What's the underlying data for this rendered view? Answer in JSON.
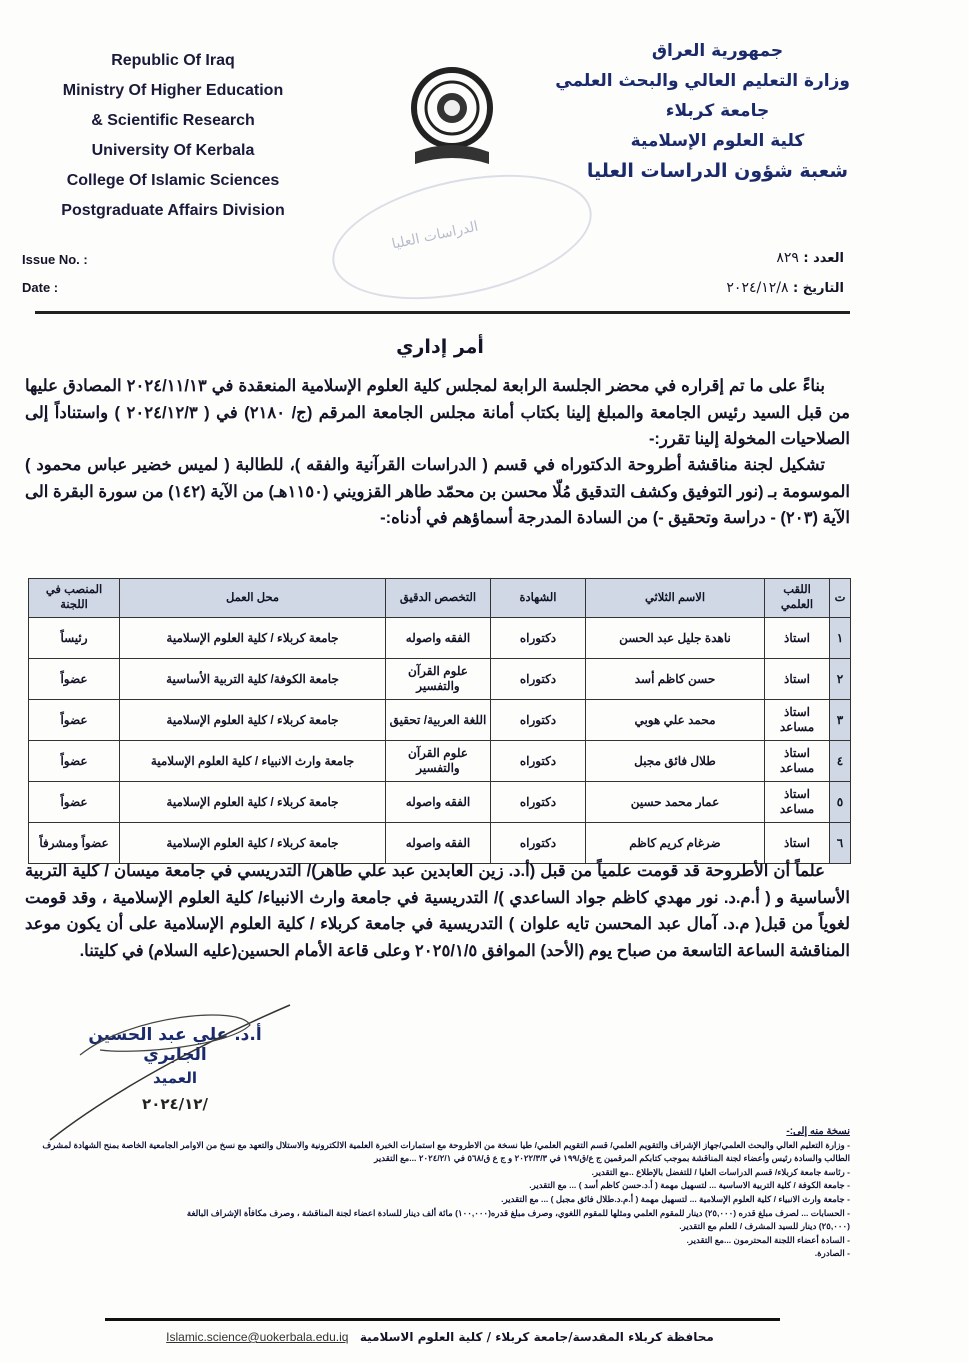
{
  "header_en": {
    "lines": [
      "Republic Of Iraq",
      "Ministry Of Higher Education",
      "& Scientific Research",
      "University Of Kerbala",
      "College Of Islamic Sciences",
      "Postgraduate Affairs Division"
    ],
    "issue_label": "Issue No. :",
    "date_label": "Date :"
  },
  "header_ar": {
    "lines": [
      "جمهورية العراق",
      "وزارة التعليم العالي والبحث العلمي",
      "جامعة كربلاء",
      "كلية العلوم الإسلامية",
      "شعبة شؤون الدراسات العليا"
    ],
    "issue_label": "العدد :",
    "issue_value": "٨٢٩",
    "date_label": "التاريخ :",
    "date_value": "٢٠٢٤/١٢/٨"
  },
  "stamp_text": "الدراسات العليا",
  "title": "أمر إداري",
  "paragraphs": [
    "بناءً على ما تم إقراره في محضر الجلسة الرابعة لمجلس كلية العلوم الإسلامية المنعقدة في ٢٠٢٤/١١/١٣ المصادق عليها من قبل السيد رئيس الجامعة والمبلغ إلينا بكتاب أمانة مجلس الجامعة المرقم (ج/ ٢١٨٠) في ( ٢٠٢٤/١٢/٣ ) واستناداً إلى الصلاحيات المخولة إلينا تقرر:-",
    "تشكيل لجنة مناقشة أطروحة الدكتوراه في قسم ( الدراسات القرآنية والفقه )، للطالبة ( لميس خضير عباس محمود ) الموسومة بـ (نور التوفيق وكشف التدقيق مُلّا محسن بن محمّد طاهر القزويني (١١٥٠هـ) من الآية (١٤٢) من سورة البقرة الى الآية (٢٠٣) - دراسة وتحقيق -) من السادة المدرجة أسماؤهم في أدناه:-"
  ],
  "table": {
    "headers": [
      "ت",
      "اللقب العلمي",
      "الاسم الثلاثي",
      "الشهادة",
      "التخصص الدقيق",
      "محل العمل",
      "المنصب في اللجنة"
    ],
    "rows": [
      [
        "١",
        "استاذ",
        "ناهدة جليل عبد الحسن",
        "دكتوراه",
        "الفقه واصوله",
        "جامعة كربلاء / كلية العلوم الإسلامية",
        "رئيساً"
      ],
      [
        "٢",
        "استاذ",
        "حسن كاظم أسد",
        "دكتوراه",
        "علوم القرآن والتفسير",
        "جامعة الكوفة/ كلية التربية الأساسية",
        "عضواً"
      ],
      [
        "٣",
        "استاذ مساعد",
        "محمد علي هوبي",
        "دكتوراه",
        "اللغة العربية/ تحقيق",
        "جامعة كربلاء / كلية العلوم الإسلامية",
        "عضواً"
      ],
      [
        "٤",
        "استاذ مساعد",
        "طلال فائق مجبل",
        "دكتوراه",
        "علوم القرآن والتفسير",
        "جامعة وارث الانبياء / كلية العلوم الإسلامية",
        "عضواً"
      ],
      [
        "٥",
        "استاذ مساعد",
        "عمار محمد حسين",
        "دكتوراه",
        "الفقه واصوله",
        "جامعة كربلاء / كلية العلوم الإسلامية",
        "عضواً"
      ],
      [
        "٦",
        "استاذ",
        "ضرغام كريم كاظم",
        "دكتوراه",
        "الفقه واصوله",
        "جامعة كربلاء / كلية العلوم الإسلامية",
        "عضواً ومشرفاً"
      ]
    ]
  },
  "closing_paragraph": "علماً أن الأطروحة قد قومت علمياً من قبل (أ.د. زين العابدين عبد علي طاهر)/ التدريسي في جامعة ميسان / كلية التربية الأساسية و ( أ.م.د. نور مهدي كاظم جواد الساعدي )/ التدريسية في جامعة وارث الانبياء/ كلية العلوم الإسلامية ، وقد قومت لغوياً من قبل( م.د. آمال عبد المحسن تايه علوان ) التدريسية في جامعة كربلاء / كلية العلوم الإسلامية على أن يكون موعد المناقشة الساعة التاسعة من صباح يوم (الأحد) الموافق ٢٠٢٥/١/٥ وعلى قاعة الأمام الحسين(عليه السلام) في كليتنا.",
  "signature": {
    "name": "أ.د. علي عبد الحسين الجابري",
    "title": "العميد",
    "date": "٢٠٢٤/١٢/"
  },
  "cc": {
    "heading": "نسخة منه إلى:-",
    "items": [
      "- وزارة التعليم العالي والبحث العلمي/جهاز الإشراف والتقويم العلمي/ قسم التقويم العلمي/ طيا نسخة من الاطروحة مع استمارات الخبرة العلمية الالكترونية والاستلال والتعهد مع نسخ من الاوامر الجامعية الخاصة بمنح الشهادة لمشرف الطالب والسادة رئيس وأعضاء لجنة المناقشة بموجب كتابكم المرقمين ج ع/ق/١٩٩ في ٢٠٢٢/٣/٣ و ج ع ق/٥٦٨ في ٢٠٢٤/٢/١ ...مع التقدير",
      "- رئاسة جامعة كربلاء/ قسم الدراسات العليا / للتفضل بالإطلاع ..مع التقدير.",
      "- جامعة الكوفة / كلية التربية الاساسية ... لتسهيل مهمة ( أ.د.حسن كاظم أسد ) ... مع التقدير.",
      "- جامعة وارث الانبياء / كلية العلوم الإسلامية ... لتسهيل مهمة ( أ.م.د.طلال فائق مجبل ) ... مع التقدير.",
      "- الحسابات ... لصرف مبلغ قدره (٢٥,٠٠٠) دينار للمقوم العلمي ومثلها للمقوم اللغوي، وصرف مبلغ قدره(١٠٠,٠٠٠) مائة ألف دينار للسادة اعضاء لجنة المناقشة ، وصرف مكافأة الإشراف البالغة (٢٥,٠٠٠) دينار للسيد المشرف / للعلم مع التقدير.",
      "- السادة أعضاء اللجنة المحترمون ...مع التقدير.",
      "- الصادرة."
    ]
  },
  "footer": {
    "email": "Islamic.science@uokerbala.edu.iq",
    "address": "محافظة كربلاء المقدسة/جامعة كربلاء / كلية العلوم الاسلامية"
  }
}
